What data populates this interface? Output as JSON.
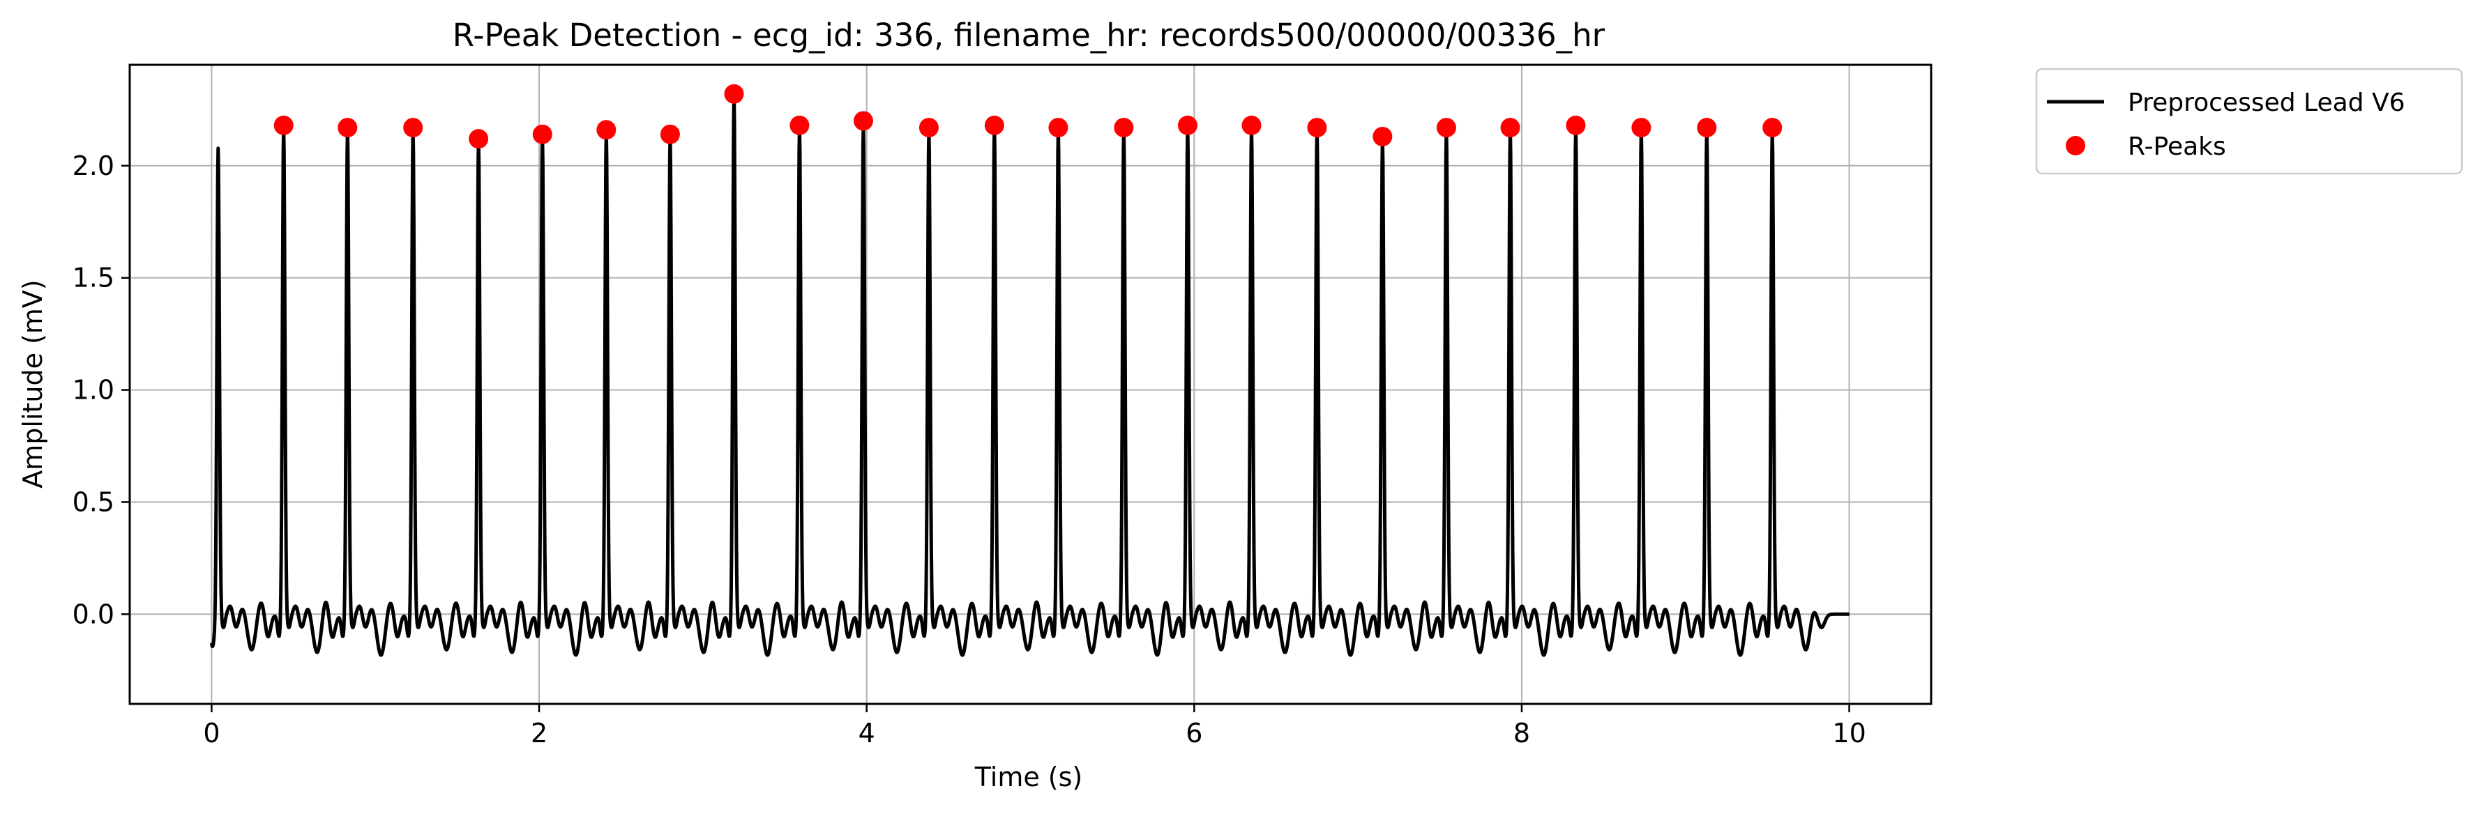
{
  "chart_data": {
    "type": "line",
    "title": "R-Peak Detection - ecg_id: 336, filename_hr: records500/00000/00336_hr",
    "xlabel": "Time (s)",
    "ylabel": "Amplitude (mV)",
    "xlim": [
      -0.5,
      10.5
    ],
    "ylim": [
      -0.4,
      2.45
    ],
    "xticks": [
      0,
      2,
      4,
      6,
      8,
      10
    ],
    "xtick_labels": [
      "0",
      "2",
      "4",
      "6",
      "8",
      "10"
    ],
    "yticks": [
      0.0,
      0.5,
      1.0,
      1.5,
      2.0
    ],
    "ytick_labels": [
      "0.0",
      "0.5",
      "1.0",
      "1.5",
      "2.0"
    ],
    "grid": true,
    "legend_position": "outside-top-right",
    "colors": {
      "signal": "#000000",
      "peaks": "#ff0000",
      "grid": "#b0b0b0"
    },
    "series": [
      {
        "name": "Preprocessed Lead V6",
        "type": "line",
        "duration_s": 10,
        "first_beat": {
          "t": 0.04,
          "amp": 2.08
        }
      },
      {
        "name": "R-Peaks",
        "type": "scatter",
        "x": [
          0.44,
          0.83,
          1.23,
          1.63,
          2.02,
          2.41,
          2.8,
          3.19,
          3.59,
          3.98,
          4.38,
          4.78,
          5.17,
          5.57,
          5.96,
          6.35,
          6.75,
          7.15,
          7.54,
          7.93,
          8.33,
          8.73,
          9.13,
          9.53
        ],
        "y": [
          2.18,
          2.17,
          2.17,
          2.12,
          2.14,
          2.16,
          2.14,
          2.32,
          2.18,
          2.2,
          2.17,
          2.18,
          2.17,
          2.17,
          2.18,
          2.18,
          2.17,
          2.13,
          2.17,
          2.17,
          2.18,
          2.17,
          2.17,
          2.17
        ]
      }
    ]
  }
}
